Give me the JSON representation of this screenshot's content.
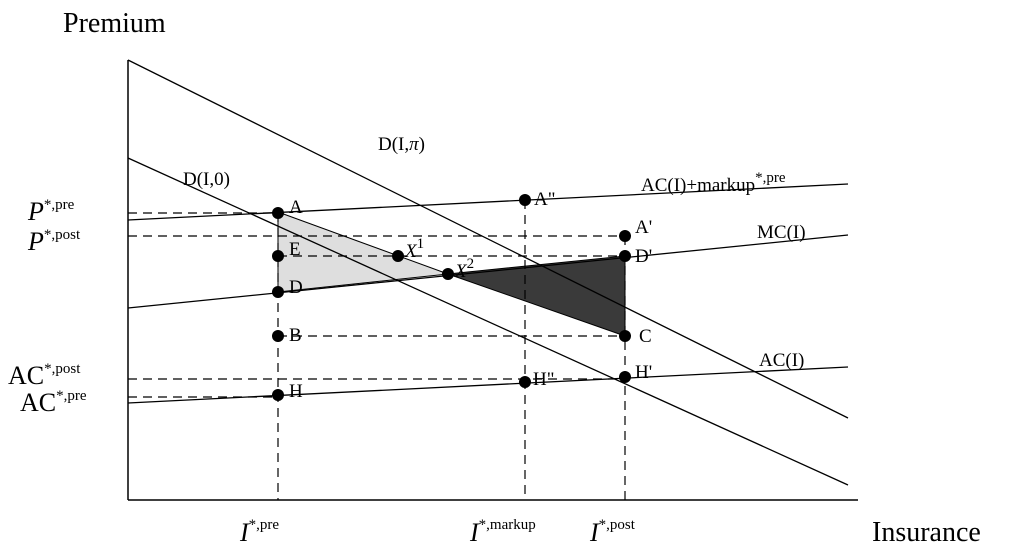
{
  "axes": {
    "y_title": "Premium",
    "x_title": "Insurance"
  },
  "curves": {
    "demand_pi": {
      "label": "D(I,",
      "sym": "π",
      "close": ")"
    },
    "demand_0": {
      "label": "D(I,0)"
    },
    "ac_markup": {
      "label": "AC(I)+markup",
      "sup": "*,pre"
    },
    "mc": {
      "label": "MC(I)"
    },
    "ac": {
      "label": "AC(I)"
    }
  },
  "points": {
    "A": "A",
    "A2": "A\"",
    "A1": "A'",
    "E": "E",
    "D": "D",
    "D1": "D'",
    "B": "B",
    "C": "C",
    "H": "H",
    "H2": "H\"",
    "H1": "H'",
    "X1": {
      "base": "X",
      "sup": "1"
    },
    "X2": {
      "base": "X",
      "sup": "2"
    }
  },
  "y_ticks": {
    "p_pre": {
      "base": "P",
      "sup": "*,pre"
    },
    "p_post": {
      "base": "P",
      "sup": "*,post"
    },
    "ac_post": {
      "base": "AC",
      "sup": "*,post"
    },
    "ac_pre": {
      "base": "AC",
      "sup": "*,pre"
    }
  },
  "x_ticks": {
    "i_pre": {
      "base": "I",
      "sup": "*,pre"
    },
    "i_markup": {
      "base": "I",
      "sup": "*,markup"
    },
    "i_post": {
      "base": "I",
      "sup": "*,post"
    }
  },
  "colors": {
    "light_triangle": "#dedede",
    "dark_triangle": "#3a3a3a",
    "line": "#000000"
  }
}
